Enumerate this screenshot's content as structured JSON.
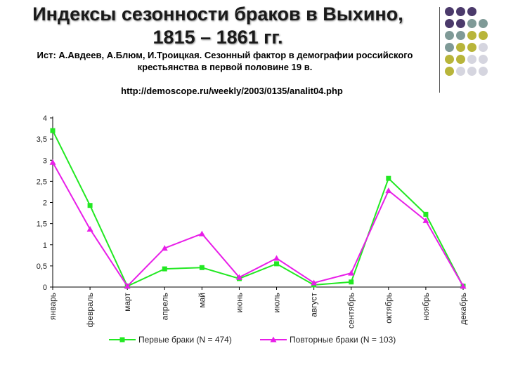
{
  "header": {
    "title_line1": "Индексы сезонности браков в Выхино,",
    "title_line2": "1815 – 1861 гг.",
    "source_line1": "Ист: А.Авдеев, А.Блюм, И.Троицкая. Сезонный фактор в демографии российского",
    "source_line2": "крестьянства в первой половине 19 в.",
    "url": "http://demoscope.ru/weekly/2003/0135/analit04.php"
  },
  "decor": {
    "dot_colors": [
      "#4b3a6b",
      "#7f9a97",
      "#b8b53a",
      "#d5d5df"
    ]
  },
  "chart_data": {
    "type": "line",
    "categories": [
      "январь",
      "февраль",
      "март",
      "апрель",
      "май",
      "июнь",
      "июль",
      "август",
      "сентябрь",
      "октябрь",
      "ноябрь",
      "декабрь"
    ],
    "ylim": [
      0,
      4
    ],
    "yticks": [
      "0",
      "0,5",
      "1",
      "1,5",
      "2",
      "2,5",
      "3",
      "3,5",
      "4"
    ],
    "ytick_values": [
      0,
      0.5,
      1,
      1.5,
      2,
      2.5,
      3,
      3.5,
      4
    ],
    "series": [
      {
        "name": "Первые браки (N = 474)",
        "color": "#22e822",
        "marker": "square",
        "values": [
          3.7,
          1.93,
          0.02,
          0.43,
          0.46,
          0.2,
          0.55,
          0.05,
          0.12,
          2.57,
          1.72,
          0.02
        ]
      },
      {
        "name": "Повторные браки (N = 103)",
        "color": "#e81ee8",
        "marker": "triangle",
        "values": [
          2.95,
          1.37,
          0.02,
          0.92,
          1.26,
          0.23,
          0.68,
          0.1,
          0.33,
          2.28,
          1.57,
          0.02
        ]
      }
    ]
  }
}
